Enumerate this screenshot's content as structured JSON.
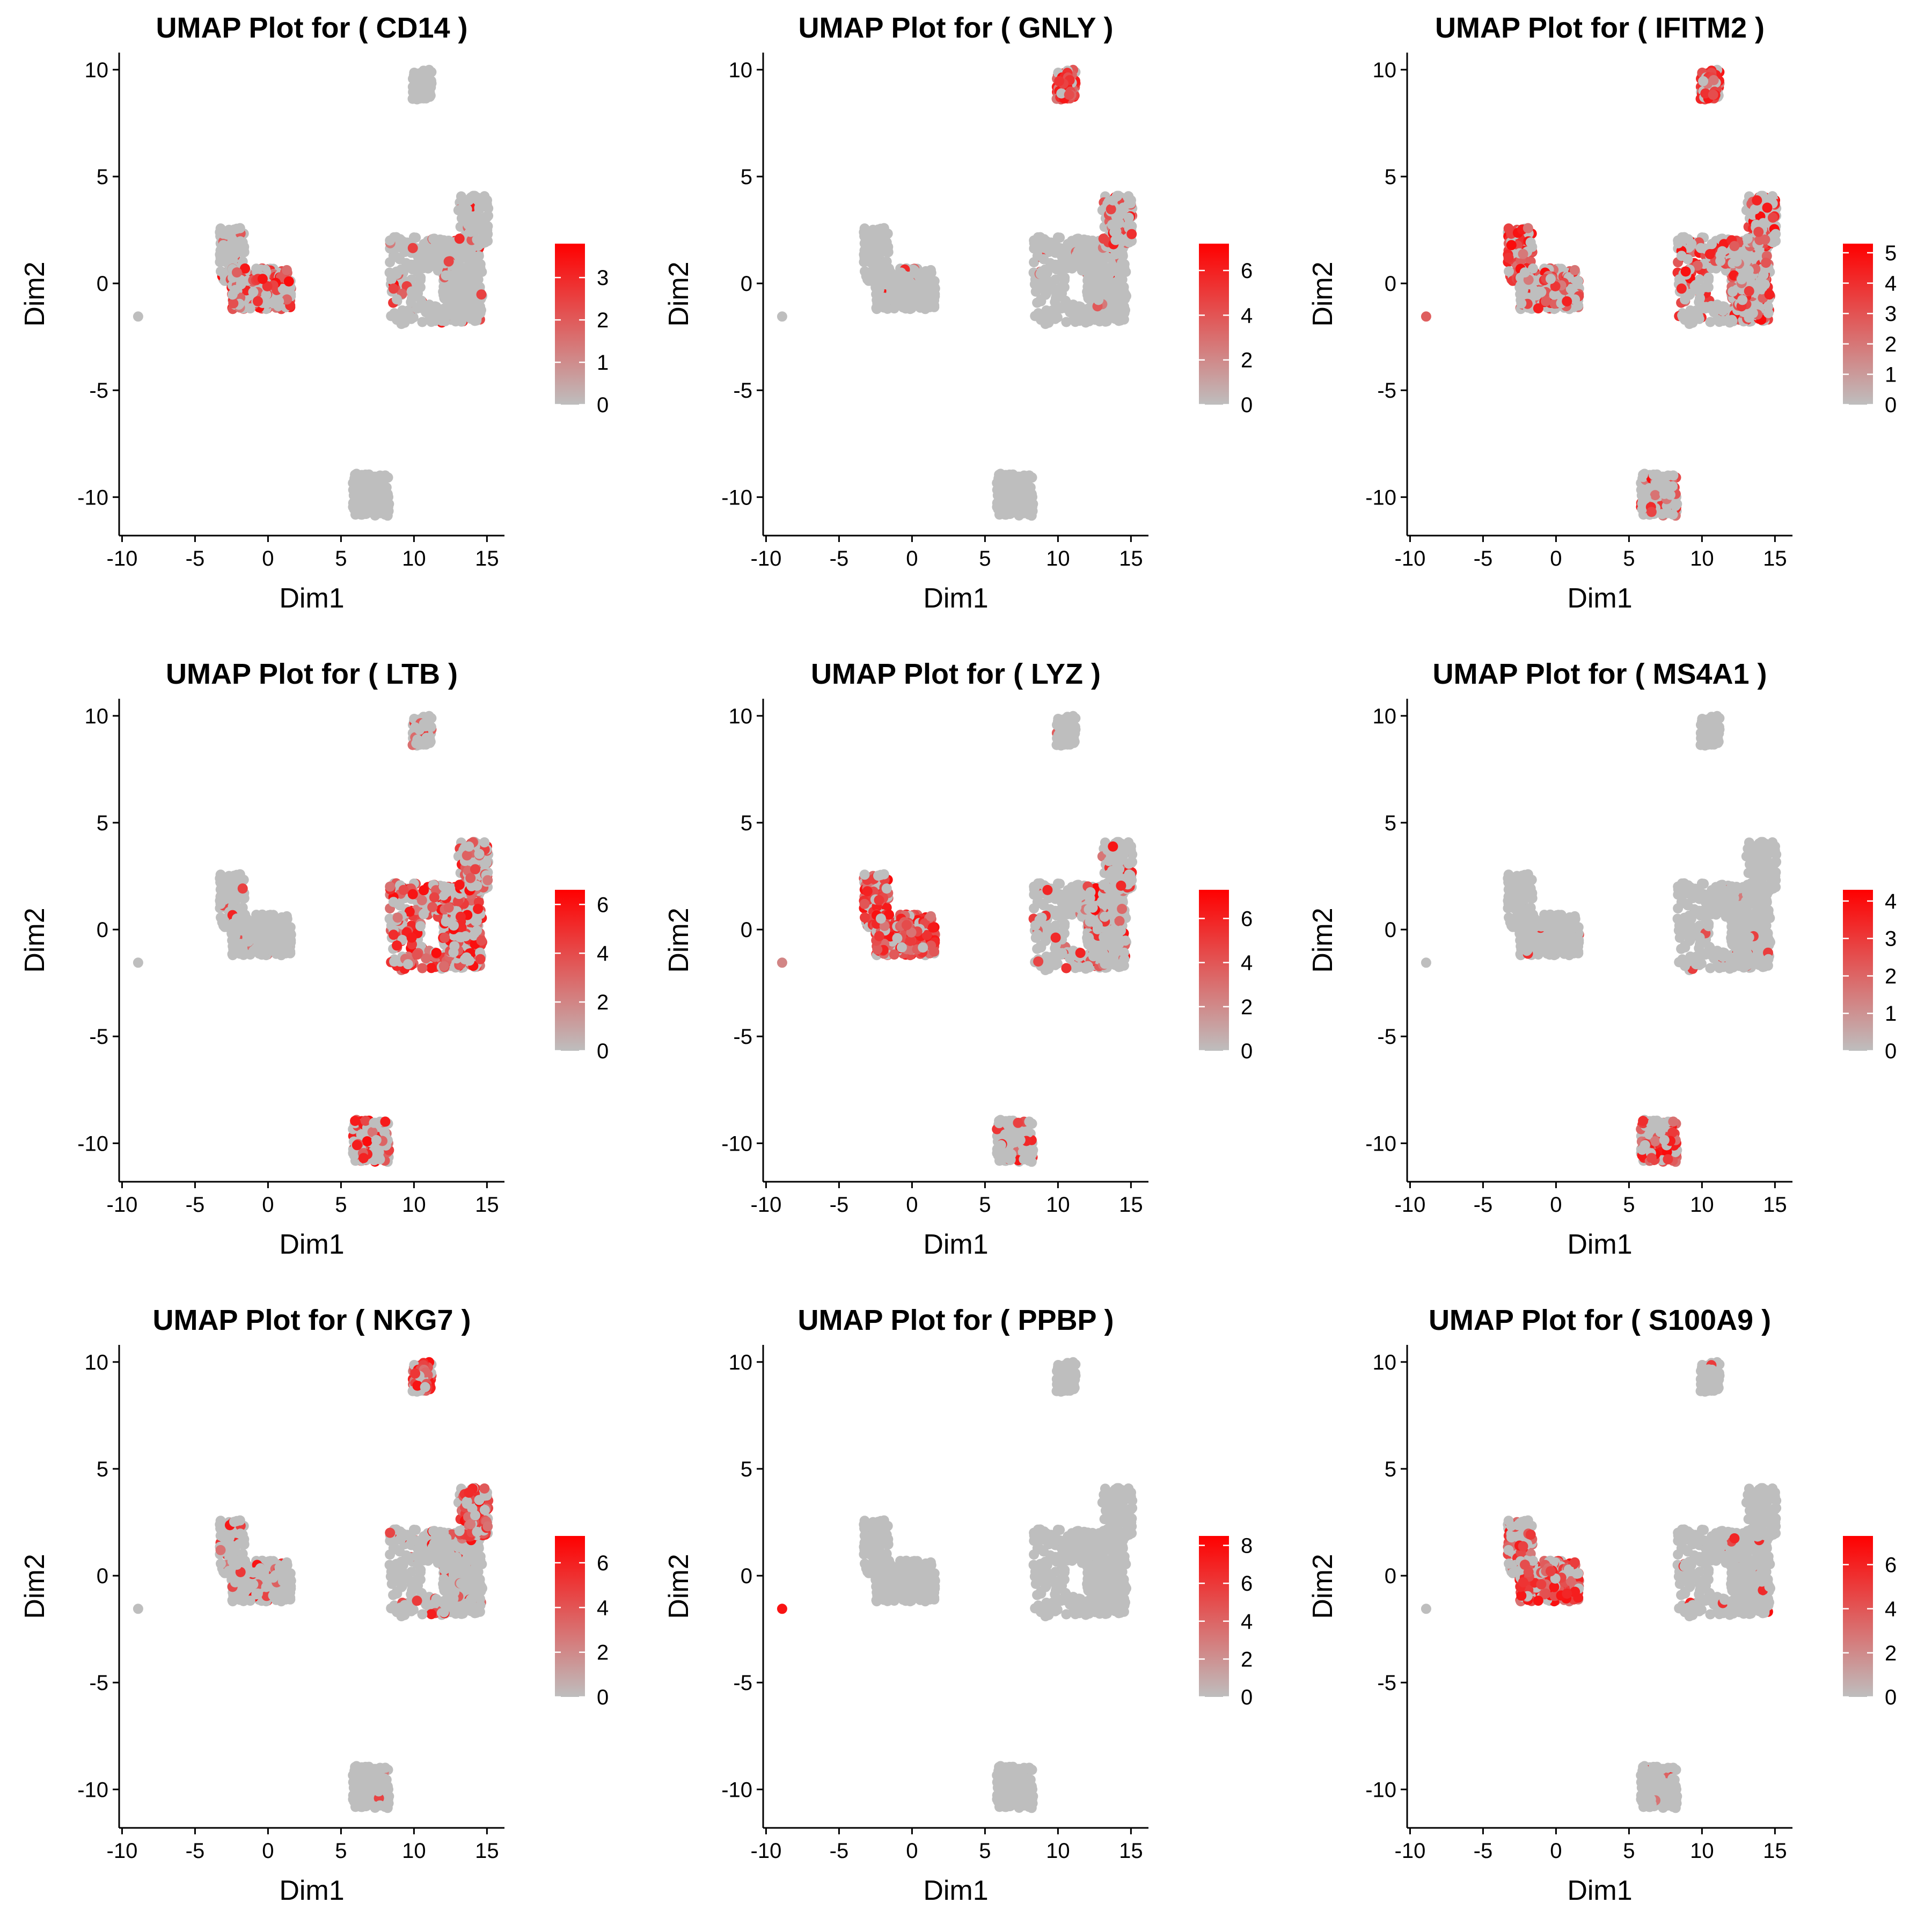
{
  "colors": {
    "low": "#bebebe",
    "high": "#ff0000",
    "axis": "#000000",
    "background": "#ffffff"
  },
  "chart_data": [
    {
      "type": "scatter",
      "title": "UMAP Plot for ( CD14 )",
      "xlabel": "Dim1",
      "ylabel": "Dim2",
      "xlim": [
        -10.2,
        16.2
      ],
      "ylim": [
        -11.8,
        10.8
      ],
      "xticks": [
        -10,
        -5,
        0,
        5,
        10,
        15
      ],
      "yticks": [
        -10,
        -5,
        0,
        5,
        10
      ],
      "colorbar": {
        "max": 3.8,
        "ticks": [
          0,
          1,
          2,
          3
        ]
      },
      "grid": false,
      "legend": "right",
      "expression": {
        "nk": 0.0,
        "tcell": 0.05,
        "tcell_top": 0.02,
        "bcell": 0.0,
        "mono_upper": 0.1,
        "mono_lower": 0.55,
        "platelet": 0.0
      }
    },
    {
      "type": "scatter",
      "title": "UMAP Plot for ( GNLY )",
      "xlabel": "Dim1",
      "ylabel": "Dim2",
      "xlim": [
        -10.2,
        16.2
      ],
      "ylim": [
        -11.8,
        10.8
      ],
      "xticks": [
        -10,
        -5,
        0,
        5,
        10,
        15
      ],
      "yticks": [
        -10,
        -5,
        0,
        5,
        10
      ],
      "colorbar": {
        "max": 7.2,
        "ticks": [
          0,
          2,
          4,
          6
        ]
      },
      "grid": false,
      "legend": "right",
      "expression": {
        "nk": 0.8,
        "tcell": 0.03,
        "tcell_top": 0.35,
        "bcell": 0.0,
        "mono_upper": 0.02,
        "mono_lower": 0.05,
        "platelet": 0.0
      }
    },
    {
      "type": "scatter",
      "title": "UMAP Plot for ( IFITM2 )",
      "xlabel": "Dim1",
      "ylabel": "Dim2",
      "xlim": [
        -10.2,
        16.2
      ],
      "ylim": [
        -11.8,
        10.8
      ],
      "xticks": [
        -10,
        -5,
        0,
        5,
        10,
        15
      ],
      "yticks": [
        -10,
        -5,
        0,
        5,
        10
      ],
      "colorbar": {
        "max": 5.3,
        "ticks": [
          0,
          1,
          2,
          3,
          4,
          5
        ]
      },
      "grid": false,
      "legend": "right",
      "expression": {
        "nk": 0.75,
        "tcell": 0.35,
        "tcell_top": 0.4,
        "bcell": 0.3,
        "mono_upper": 0.7,
        "mono_lower": 0.45,
        "platelet": 0.5
      }
    },
    {
      "type": "scatter",
      "title": "UMAP Plot for ( LTB )",
      "xlabel": "Dim1",
      "ylabel": "Dim2",
      "xlim": [
        -10.2,
        16.2
      ],
      "ylim": [
        -11.8,
        10.8
      ],
      "xticks": [
        -10,
        -5,
        0,
        5,
        10,
        15
      ],
      "yticks": [
        -10,
        -5,
        0,
        5,
        10
      ],
      "colorbar": {
        "max": 6.6,
        "ticks": [
          0,
          2,
          4,
          6
        ]
      },
      "grid": false,
      "legend": "right",
      "expression": {
        "nk": 0.15,
        "tcell": 0.5,
        "tcell_top": 0.3,
        "bcell": 0.5,
        "mono_upper": 0.05,
        "mono_lower": 0.05,
        "platelet": 0.0
      }
    },
    {
      "type": "scatter",
      "title": "UMAP Plot for ( LYZ )",
      "xlabel": "Dim1",
      "ylabel": "Dim2",
      "xlim": [
        -10.2,
        16.2
      ],
      "ylim": [
        -11.8,
        10.8
      ],
      "xticks": [
        -10,
        -5,
        0,
        5,
        10,
        15
      ],
      "yticks": [
        -10,
        -5,
        0,
        5,
        10
      ],
      "colorbar": {
        "max": 7.3,
        "ticks": [
          0,
          2,
          4,
          6
        ]
      },
      "grid": false,
      "legend": "right",
      "expression": {
        "nk": 0.05,
        "tcell": 0.15,
        "tcell_top": 0.15,
        "bcell": 0.2,
        "mono_upper": 0.6,
        "mono_lower": 0.8,
        "platelet": 0.3
      }
    },
    {
      "type": "scatter",
      "title": "UMAP Plot for ( MS4A1 )",
      "xlabel": "Dim1",
      "ylabel": "Dim2",
      "xlim": [
        -10.2,
        16.2
      ],
      "ylim": [
        -11.8,
        10.8
      ],
      "xticks": [
        -10,
        -5,
        0,
        5,
        10,
        15
      ],
      "yticks": [
        -10,
        -5,
        0,
        5,
        10
      ],
      "colorbar": {
        "max": 4.3,
        "ticks": [
          0,
          1,
          2,
          3,
          4
        ]
      },
      "grid": false,
      "legend": "right",
      "expression": {
        "nk": 0.0,
        "tcell": 0.02,
        "tcell_top": 0.02,
        "bcell": 0.65,
        "mono_upper": 0.02,
        "mono_lower": 0.02,
        "platelet": 0.0
      }
    },
    {
      "type": "scatter",
      "title": "UMAP Plot for ( NKG7 )",
      "xlabel": "Dim1",
      "ylabel": "Dim2",
      "xlim": [
        -10.2,
        16.2
      ],
      "ylim": [
        -11.8,
        10.8
      ],
      "xticks": [
        -10,
        -5,
        0,
        5,
        10,
        15
      ],
      "yticks": [
        -10,
        -5,
        0,
        5,
        10
      ],
      "colorbar": {
        "max": 7.2,
        "ticks": [
          0,
          2,
          4,
          6
        ]
      },
      "grid": false,
      "legend": "right",
      "expression": {
        "nk": 0.85,
        "tcell": 0.08,
        "tcell_top": 0.6,
        "bcell": 0.05,
        "mono_upper": 0.15,
        "mono_lower": 0.12,
        "platelet": 0.0
      }
    },
    {
      "type": "scatter",
      "title": "UMAP Plot for ( PPBP )",
      "xlabel": "Dim1",
      "ylabel": "Dim2",
      "xlim": [
        -10.2,
        16.2
      ],
      "ylim": [
        -11.8,
        10.8
      ],
      "xticks": [
        -10,
        -5,
        0,
        5,
        10,
        15
      ],
      "yticks": [
        -10,
        -5,
        0,
        5,
        10
      ],
      "colorbar": {
        "max": 8.5,
        "ticks": [
          0,
          2,
          4,
          6,
          8
        ]
      },
      "grid": false,
      "legend": "right",
      "expression": {
        "nk": 0.0,
        "tcell": 0.0,
        "tcell_top": 0.0,
        "bcell": 0.0,
        "mono_upper": 0.0,
        "mono_lower": 0.0,
        "platelet": 0.9
      }
    },
    {
      "type": "scatter",
      "title": "UMAP Plot for ( S100A9 )",
      "xlabel": "Dim1",
      "ylabel": "Dim2",
      "xlim": [
        -10.2,
        16.2
      ],
      "ylim": [
        -11.8,
        10.8
      ],
      "xticks": [
        -10,
        -5,
        0,
        5,
        10,
        15
      ],
      "yticks": [
        -10,
        -5,
        0,
        5,
        10
      ],
      "colorbar": {
        "max": 7.3,
        "ticks": [
          0,
          2,
          4,
          6
        ]
      },
      "grid": false,
      "legend": "right",
      "expression": {
        "nk": 0.02,
        "tcell": 0.05,
        "tcell_top": 0.05,
        "bcell": 0.05,
        "mono_upper": 0.4,
        "mono_lower": 0.75,
        "platelet": 0.0
      }
    }
  ]
}
